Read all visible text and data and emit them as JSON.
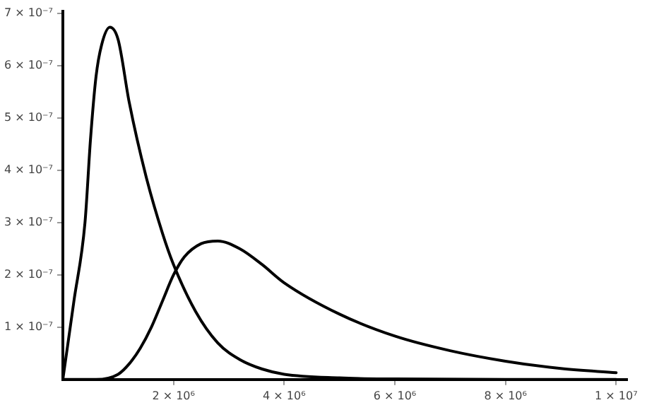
{
  "chart_data": {
    "type": "line",
    "x": [
      0,
      200000,
      400000,
      500000,
      600000,
      700000,
      850000,
      1000000,
      1200000,
      1500000,
      1800000,
      2000000,
      2400000,
      2800000,
      3200000,
      3600000,
      4000000,
      5000000,
      6000000,
      8000000,
      10000000
    ],
    "series": [
      {
        "color": "#000000",
        "values": [
          0,
          1.5e-07,
          3e-07,
          4.6e-07,
          5.8e-07,
          6.4e-07,
          6.74e-07,
          6.5e-07,
          5.3e-07,
          3.9e-07,
          2.8e-07,
          2.2e-07,
          1.3e-07,
          7e-08,
          3.8e-08,
          2e-08,
          1e-08,
          3e-09,
          1e-09,
          0,
          0
        ]
      },
      {
        "color": "#000000",
        "x": [
          0,
          600000,
          1000000,
          1200000,
          1400000,
          1600000,
          1800000,
          2000000,
          2200000,
          2500000,
          2800000,
          3200000,
          3600000,
          4000000,
          5000000,
          6000000,
          7000000,
          8000000,
          9000000,
          10000000
        ],
        "values": [
          0,
          0,
          1e-08,
          3e-08,
          6e-08,
          1e-07,
          1.5e-07,
          2e-07,
          2.35e-07,
          2.6e-07,
          2.65e-07,
          2.5e-07,
          2.2e-07,
          1.85e-07,
          1.25e-07,
          8.3e-08,
          5.5e-08,
          3.5e-08,
          2.1e-08,
          1.3e-08
        ]
      }
    ],
    "xlim": [
      0,
      10200000
    ],
    "xticks": [
      {
        "value": 2000000,
        "label": "2 × 10⁶"
      },
      {
        "value": 4000000,
        "label": "4 × 10⁶"
      },
      {
        "value": 6000000,
        "label": "6 × 10⁶"
      },
      {
        "value": 8000000,
        "label": "8 × 10⁶"
      },
      {
        "value": 10000000,
        "label": "1 × 10⁷"
      }
    ],
    "ylim": [
      0,
      7.05e-07
    ],
    "yticks": [
      {
        "value": 1e-07,
        "label": "1 × 10⁻⁷"
      },
      {
        "value": 2e-07,
        "label": "2 × 10⁻⁷"
      },
      {
        "value": 3e-07,
        "label": "3 × 10⁻⁷"
      },
      {
        "value": 4e-07,
        "label": "4 × 10⁻⁷"
      },
      {
        "value": 5e-07,
        "label": "5 × 10⁻⁷"
      },
      {
        "value": 6e-07,
        "label": "6 × 10⁻⁷"
      },
      {
        "value": 7e-07,
        "label": "7 × 10⁻⁷"
      }
    ],
    "grid": false,
    "legend": false,
    "marker": "none",
    "line_style": "solid"
  }
}
